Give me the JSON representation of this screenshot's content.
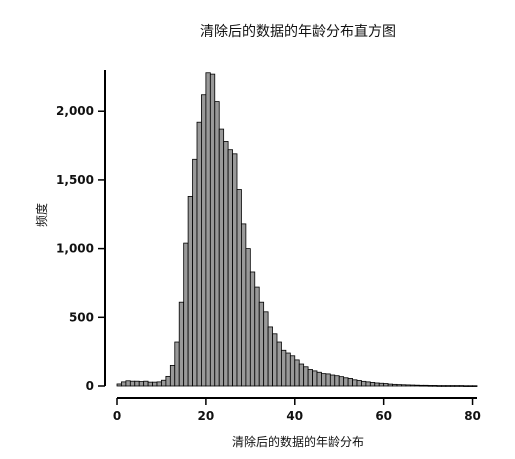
{
  "chart_data": {
    "type": "bar",
    "title": "清除后的数据的年龄分布直方图",
    "xlabel": "清除后的数据的年龄分布",
    "ylabel": "频度",
    "xlim": [
      0,
      81
    ],
    "ylim": [
      0,
      2300
    ],
    "xticks": [
      0,
      20,
      40,
      60,
      80
    ],
    "yticks": [
      0,
      500,
      1000,
      1500,
      2000
    ],
    "ytick_labels": [
      "0",
      "500",
      "1,000",
      "1,500",
      "2,000"
    ],
    "xtick_labels": [
      "0",
      "20",
      "40",
      "60",
      "80"
    ],
    "grid": false,
    "bar_color": "#999999",
    "bin_width": 1,
    "bin_starts": [
      0,
      1,
      2,
      3,
      4,
      5,
      6,
      7,
      8,
      9,
      10,
      11,
      12,
      13,
      14,
      15,
      16,
      17,
      18,
      19,
      20,
      21,
      22,
      23,
      24,
      25,
      26,
      27,
      28,
      29,
      30,
      31,
      32,
      33,
      34,
      35,
      36,
      37,
      38,
      39,
      40,
      41,
      42,
      43,
      44,
      45,
      46,
      47,
      48,
      49,
      50,
      51,
      52,
      53,
      54,
      55,
      56,
      57,
      58,
      59,
      60,
      61,
      62,
      63,
      64,
      65,
      66,
      67,
      68,
      69,
      70,
      71,
      72,
      73,
      74,
      75,
      76,
      77,
      78,
      79,
      80
    ],
    "values": [
      15,
      30,
      38,
      35,
      35,
      32,
      35,
      28,
      28,
      30,
      42,
      70,
      150,
      320,
      610,
      1040,
      1380,
      1650,
      1920,
      2120,
      2280,
      2270,
      2070,
      1870,
      1780,
      1720,
      1690,
      1430,
      1180,
      1000,
      830,
      720,
      610,
      540,
      430,
      380,
      320,
      260,
      240,
      220,
      190,
      160,
      140,
      120,
      110,
      100,
      90,
      88,
      80,
      75,
      68,
      60,
      55,
      45,
      40,
      34,
      30,
      26,
      22,
      20,
      18,
      14,
      12,
      10,
      9,
      8,
      7,
      6,
      5,
      5,
      4,
      4,
      3,
      3,
      3,
      3,
      3,
      3,
      2,
      2,
      2
    ]
  }
}
